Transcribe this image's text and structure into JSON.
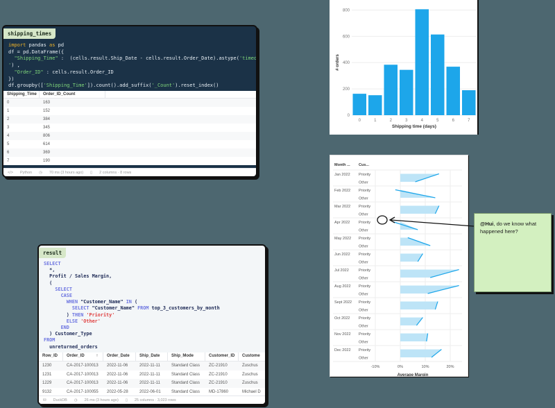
{
  "python_cell": {
    "tag": "shipping_times",
    "code_lines": [
      [
        "import",
        " pandas ",
        "as",
        " pd"
      ],
      "df = pd.DataFrame({",
      "  \"Shipping_Time\" :  (cells.result.Ship_Date - cells.result.Order_Date).astype('timedelta64[D]",
      "') ,",
      "  \"Order_ID\" : cells.result.Order_ID",
      "})",
      "df.groupby(['Shipping_Time']).count().add_suffix('_Count').reset_index()"
    ],
    "columns": [
      "Shipping_Time",
      "Order_ID_Count"
    ],
    "rows": [
      [
        "0",
        "163"
      ],
      [
        "1",
        "152"
      ],
      [
        "2",
        "384"
      ],
      [
        "3",
        "345"
      ],
      [
        "4",
        "806"
      ],
      [
        "5",
        "614"
      ],
      [
        "6",
        "369"
      ],
      [
        "7",
        "190"
      ]
    ],
    "footer": {
      "language": "Python",
      "timing": "70 ms (3 hours ago)",
      "shape": "2 columns · 8 rows"
    }
  },
  "sql_cell": {
    "tag": "result",
    "columns": [
      "Row_ID",
      "Order_ID",
      "Order_Date",
      "Ship_Date",
      "Ship_Mode",
      "Customer_ID",
      "Custome"
    ],
    "sort_indicator": "↑",
    "rows": [
      [
        "1230",
        "CA-2017-100013",
        "2022-11-06",
        "2022-11-11",
        "Standard Class",
        "ZC-21910",
        "Zuschus"
      ],
      [
        "1231",
        "CA-2017-100013",
        "2022-11-06",
        "2022-11-11",
        "Standard Class",
        "ZC-21910",
        "Zuschus"
      ],
      [
        "1229",
        "CA-2017-100013",
        "2022-11-06",
        "2022-11-11",
        "Standard Class",
        "ZC-21910",
        "Zuschus"
      ],
      [
        "9132",
        "CA-2017-100055",
        "2022-05-28",
        "2022-06-01",
        "Standard Class",
        "MD-17860",
        "Michael D"
      ]
    ],
    "footer": {
      "engine": "DuckDB",
      "timing": "26 ms (3 hours ago)",
      "shape": "25 columns · 3,023 rows"
    }
  },
  "note": {
    "mention": "@Hui",
    "text": ", do we know what happened here?"
  },
  "chart_data": [
    {
      "type": "bar",
      "categories": [
        "0",
        "1",
        "2",
        "3",
        "4",
        "5",
        "6",
        "7"
      ],
      "values": [
        163,
        152,
        384,
        345,
        806,
        614,
        369,
        190
      ],
      "title": "",
      "xlabel": "Shipping time (days)",
      "ylabel": "# orders",
      "ylim": [
        0,
        850
      ],
      "yticks": [
        0,
        200,
        400,
        600,
        800
      ],
      "color": "#1da6ea",
      "grid": true
    },
    {
      "type": "bar",
      "orientation": "horizontal",
      "row_headers": [
        "Month ...",
        "Cus..."
      ],
      "categories": [
        "Jan 2022",
        "Feb 2022",
        "Mar 2022",
        "Apr 2022",
        "May 2022",
        "Jun 2022",
        "Jul 2022",
        "Aug 2022",
        "Sept 2022",
        "Oct 2022",
        "Nov 2022",
        "Dec 2022"
      ],
      "series": [
        {
          "name": "Priority",
          "values": [
            15.5,
            -2,
            15.5,
            -3,
            3,
            9,
            23.5,
            23.5,
            15,
            9,
            11,
            16.5
          ]
        },
        {
          "name": "Other",
          "values": [
            6,
            14,
            14,
            7,
            12,
            7,
            12,
            11,
            14,
            6.5,
            10.5,
            12.5
          ]
        }
      ],
      "xlabel": "Average Margin",
      "xticks": [
        "-10%",
        "0%",
        "10%",
        "20%"
      ],
      "xlim": [
        -10,
        25
      ],
      "color": "#1da6ea",
      "fill": "#bde4f7"
    }
  ]
}
